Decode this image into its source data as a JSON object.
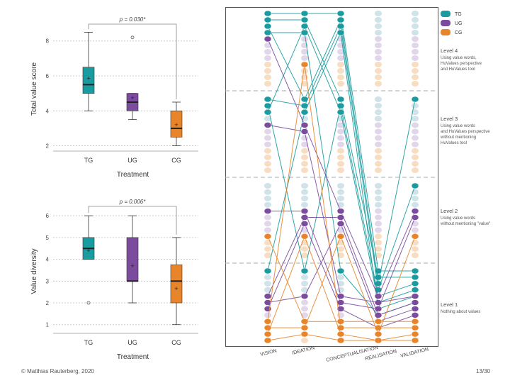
{
  "footer": {
    "copyright": "© Matthias Rauterberg, 2020",
    "page": "13/30"
  },
  "colors": {
    "TG": "#1a9b9f",
    "UG": "#7b4b9e",
    "CG": "#e8852a",
    "TG_faint": "#cfe3e8",
    "UG_faint": "#e2d7ea",
    "CG_faint": "#f8ddc3"
  },
  "chart_data": [
    {
      "type": "boxplot",
      "pvalue": "p = 0.030*",
      "ylabel": "Total value score",
      "xlabel": "Treatment",
      "ylim": [
        1.7,
        8.8
      ],
      "yticks": [
        2,
        4,
        6,
        8
      ],
      "categories": [
        "TG",
        "UG",
        "CG"
      ],
      "boxes": [
        {
          "group": "TG",
          "min": 4,
          "q1": 5,
          "median": 5.5,
          "q3": 6.5,
          "max": 8.5,
          "mean": 5.85,
          "outliers": []
        },
        {
          "group": "UG",
          "min": 3.5,
          "q1": 4,
          "median": 4.5,
          "q3": 5,
          "max": 5,
          "mean": 4.75,
          "outliers": [
            8.2
          ]
        },
        {
          "group": "CG",
          "min": 2,
          "q1": 2.5,
          "median": 3,
          "q3": 4,
          "max": 4.5,
          "mean": 3.2,
          "outliers": []
        }
      ]
    },
    {
      "type": "boxplot",
      "pvalue": "p = 0.006*",
      "ylabel": "Value diversity",
      "xlabel": "Treatment",
      "ylim": [
        0.6,
        6.3
      ],
      "yticks": [
        1,
        2,
        3,
        4,
        5,
        6
      ],
      "categories": [
        "TG",
        "UG",
        "CG"
      ],
      "boxes": [
        {
          "group": "TG",
          "min": 4,
          "q1": 4,
          "median": 4.5,
          "q3": 5,
          "max": 6,
          "mean": 4.4,
          "outliers": [
            2
          ]
        },
        {
          "group": "UG",
          "min": 2,
          "q1": 3,
          "median": 3,
          "q3": 5,
          "max": 6,
          "mean": 3.7,
          "outliers": []
        },
        {
          "group": "CG",
          "min": 1,
          "q1": 2,
          "median": 3,
          "q3": 3.75,
          "max": 5,
          "mean": 2.65,
          "outliers": []
        }
      ]
    },
    {
      "type": "parallel-levels",
      "stages": [
        "VISION",
        "IDEATION",
        "CONCEPTUALISATION",
        "REALISATION",
        "VALIDATION"
      ],
      "legend": [
        "TG",
        "UG",
        "CG"
      ],
      "levels": [
        {
          "name": "Level 4",
          "desc": [
            "Using value words,",
            "HuValues perspective",
            "and HuValues tool"
          ]
        },
        {
          "name": "Level 3",
          "desc": [
            "Using value words",
            "and HuValues perspective",
            "without mentioning",
            "HuValues tool"
          ]
        },
        {
          "name": "Level 2",
          "desc": [
            "Using value words",
            "without mentioning \"value\""
          ]
        },
        {
          "name": "Level 1",
          "desc": [
            "Nothing about values"
          ]
        }
      ],
      "paths": [
        {
          "group": "TG",
          "levels": [
            4,
            4,
            4,
            1,
            1
          ]
        },
        {
          "group": "TG",
          "levels": [
            4,
            4,
            3,
            1,
            1
          ]
        },
        {
          "group": "TG",
          "levels": [
            4,
            3,
            4,
            1,
            3
          ]
        },
        {
          "group": "TG",
          "levels": [
            3,
            3,
            4,
            1,
            2
          ]
        },
        {
          "group": "TG",
          "levels": [
            3,
            1,
            3,
            1,
            1
          ]
        },
        {
          "group": "TG",
          "levels": [
            3,
            4,
            3,
            1,
            1
          ]
        },
        {
          "group": "TG",
          "levels": [
            1,
            3,
            4,
            1,
            1
          ]
        },
        {
          "group": "TG",
          "levels": [
            4,
            4,
            1,
            1,
            1
          ]
        },
        {
          "group": "UG",
          "levels": [
            4,
            3,
            2,
            1,
            2
          ]
        },
        {
          "group": "UG",
          "levels": [
            3,
            3,
            1,
            1,
            1
          ]
        },
        {
          "group": "UG",
          "levels": [
            2,
            2,
            1,
            1,
            2
          ]
        },
        {
          "group": "UG",
          "levels": [
            1,
            2,
            2,
            1,
            1
          ]
        },
        {
          "group": "UG",
          "levels": [
            1,
            1,
            2,
            1,
            1
          ]
        },
        {
          "group": "UG",
          "levels": [
            1,
            2,
            1,
            1,
            1
          ]
        },
        {
          "group": "CG",
          "levels": [
            2,
            1,
            1,
            1,
            1
          ]
        },
        {
          "group": "CG",
          "levels": [
            1,
            4,
            1,
            1,
            1
          ]
        },
        {
          "group": "CG",
          "levels": [
            1,
            1,
            2,
            1,
            2
          ]
        },
        {
          "group": "CG",
          "levels": [
            1,
            2,
            1,
            1,
            1
          ]
        },
        {
          "group": "CG",
          "levels": [
            1,
            1,
            1,
            1,
            1
          ]
        }
      ]
    }
  ]
}
